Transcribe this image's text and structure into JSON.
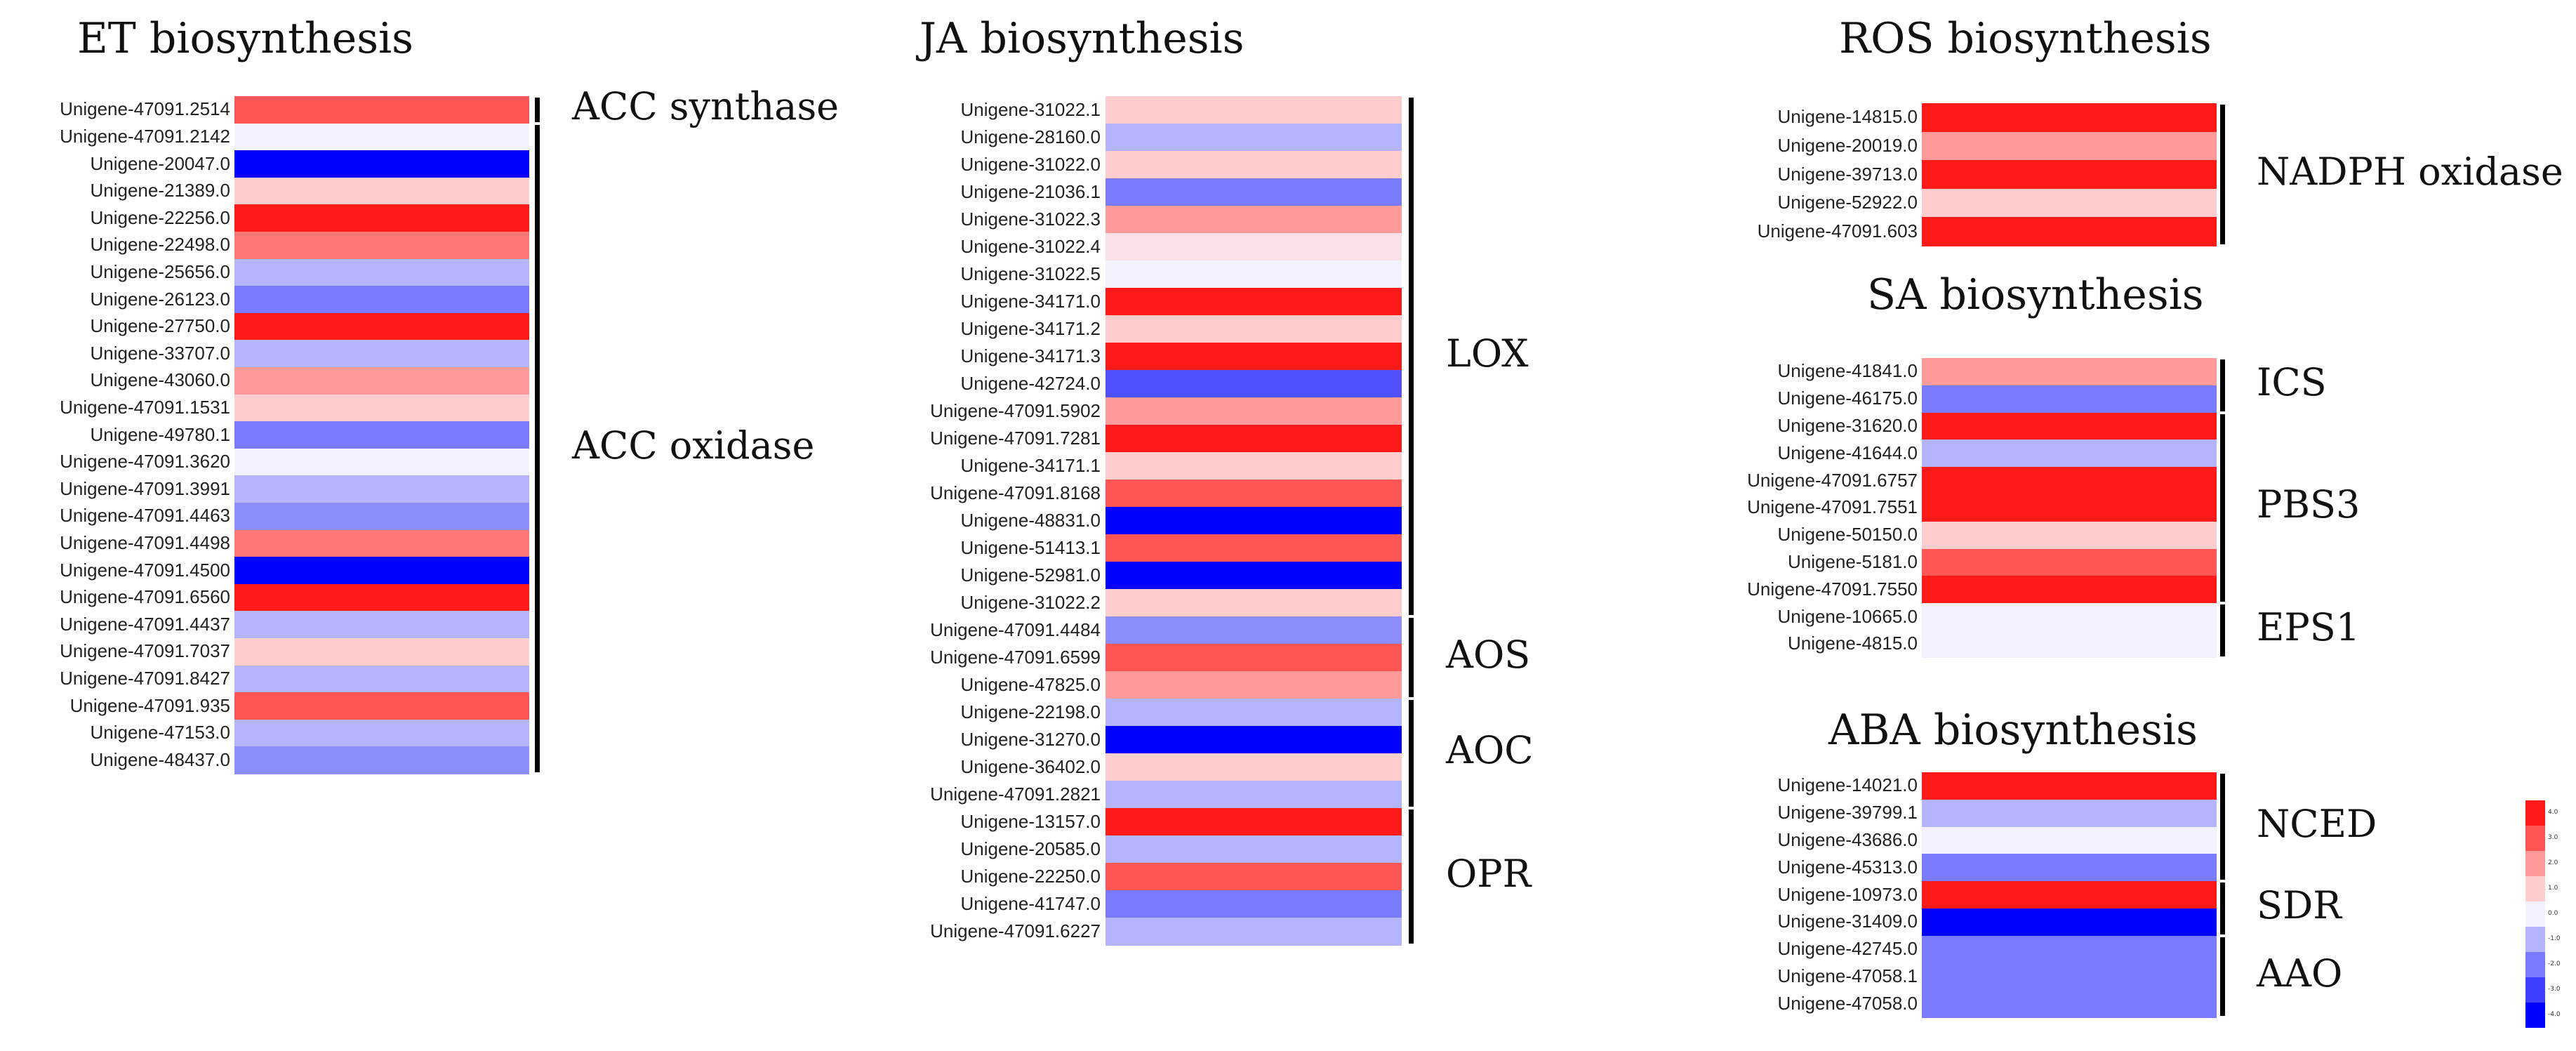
{
  "chart_data": {
    "type": "heatmap",
    "panels": [
      {
        "title": "ET biosynthesis",
        "genes": [
          "Unigene-47091.2514",
          "Unigene-47091.2142",
          "Unigene-20047.0",
          "Unigene-21389.0",
          "Unigene-22256.0",
          "Unigene-22498.0",
          "Unigene-25656.0",
          "Unigene-26123.0",
          "Unigene-27750.0",
          "Unigene-33707.0",
          "Unigene-43060.0",
          "Unigene-47091.1531",
          "Unigene-49780.1",
          "Unigene-47091.3620",
          "Unigene-47091.3991",
          "Unigene-47091.4463",
          "Unigene-47091.4498",
          "Unigene-47091.4500",
          "Unigene-47091.6560",
          "Unigene-47091.4437",
          "Unigene-47091.7037",
          "Unigene-47091.8427",
          "Unigene-47091.935",
          "Unigene-47153.0",
          "Unigene-48437.0"
        ],
        "values": [
          3,
          0,
          -4,
          1,
          4,
          2.5,
          -1,
          -2.5,
          4,
          -1,
          2,
          1,
          -2.5,
          0,
          -1,
          -2,
          2.5,
          -4,
          4,
          -1,
          1,
          -1,
          3,
          -1,
          -2
        ],
        "groups": [
          {
            "label": "ACC synthase",
            "start": 0,
            "end": 0
          },
          {
            "label": "ACC oxidase",
            "start": 1,
            "end": 24
          }
        ]
      },
      {
        "title": "JA biosynthesis",
        "genes": [
          "Unigene-31022.1",
          "Unigene-28160.0",
          "Unigene-31022.0",
          "Unigene-21036.1",
          "Unigene-31022.3",
          "Unigene-31022.4",
          "Unigene-31022.5",
          "Unigene-34171.0",
          "Unigene-34171.2",
          "Unigene-34171.3",
          "Unigene-42724.0",
          "Unigene-47091.5902",
          "Unigene-47091.7281",
          "Unigene-34171.1",
          "Unigene-47091.8168",
          "Unigene-48831.0",
          "Unigene-51413.1",
          "Unigene-52981.0",
          "Unigene-31022.2",
          "Unigene-47091.4484",
          "Unigene-47091.6599",
          "Unigene-47825.0",
          "Unigene-22198.0",
          "Unigene-31270.0",
          "Unigene-36402.0",
          "Unigene-47091.2821",
          "Unigene-13157.0",
          "Unigene-20585.0",
          "Unigene-22250.0",
          "Unigene-41747.0",
          "Unigene-47091.6227"
        ],
        "values": [
          1,
          -1,
          1,
          -2.5,
          2,
          0.5,
          0,
          4,
          1,
          4,
          -3,
          2,
          4,
          1,
          3,
          -4,
          3,
          -4,
          1,
          -2,
          3,
          2,
          -1,
          -4,
          1,
          -1,
          4,
          -1,
          3,
          -2.5,
          -1
        ],
        "groups": [
          {
            "label": "LOX",
            "start": 0,
            "end": 18
          },
          {
            "label": "AOS",
            "start": 19,
            "end": 21
          },
          {
            "label": "AOC",
            "start": 22,
            "end": 25
          },
          {
            "label": "OPR",
            "start": 26,
            "end": 30
          }
        ]
      },
      {
        "title": "ROS biosynthesis",
        "genes": [
          "Unigene-14815.0",
          "Unigene-20019.0",
          "Unigene-39713.0",
          "Unigene-52922.0",
          "Unigene-47091.603"
        ],
        "values": [
          4,
          2,
          4,
          1,
          4
        ],
        "groups": [
          {
            "label": "NADPH oxidase",
            "start": 0,
            "end": 4
          }
        ]
      },
      {
        "title": "SA biosynthesis",
        "genes": [
          "Unigene-41841.0",
          "Unigene-46175.0",
          "Unigene-31620.0",
          "Unigene-41644.0",
          "Unigene-47091.6757",
          "Unigene-47091.7551",
          "Unigene-50150.0",
          "Unigene-5181.0",
          "Unigene-47091.7550",
          "Unigene-10665.0",
          "Unigene-4815.0"
        ],
        "values": [
          2,
          -2.5,
          4,
          -1,
          4,
          4,
          1,
          3,
          4,
          0,
          0
        ],
        "groups": [
          {
            "label": "ICS",
            "start": 0,
            "end": 1
          },
          {
            "label": "PBS3",
            "start": 2,
            "end": 8
          },
          {
            "label": "EPS1",
            "start": 9,
            "end": 10
          }
        ]
      },
      {
        "title": "ABA biosynthesis",
        "genes": [
          "Unigene-14021.0",
          "Unigene-39799.1",
          "Unigene-43686.0",
          "Unigene-45313.0",
          "Unigene-10973.0",
          "Unigene-31409.0",
          "Unigene-42745.0",
          "Unigene-47058.1",
          "Unigene-47058.0"
        ],
        "values": [
          4,
          -1,
          0,
          -2.5,
          4,
          -4,
          -2.5,
          -2.5,
          -2.5
        ],
        "groups": [
          {
            "label": "NCED",
            "start": 0,
            "end": 3
          },
          {
            "label": "SDR",
            "start": 4,
            "end": 5
          },
          {
            "label": "AAO",
            "start": 6,
            "end": 8
          }
        ]
      }
    ],
    "legend": {
      "ticks": [
        "4.0",
        "3.0",
        "2.0",
        "1.0",
        "0.0",
        "-1.0",
        "-2.0",
        "-3.0",
        "-4.0"
      ],
      "range": [
        -4,
        4
      ],
      "colors": [
        "#ff1a1a",
        "#ff5555",
        "#ff9a9a",
        "#ffcdcd",
        "#f2f2ff",
        "#b4b4ff",
        "#7a7aff",
        "#4040ff",
        "#0000ff"
      ]
    }
  }
}
